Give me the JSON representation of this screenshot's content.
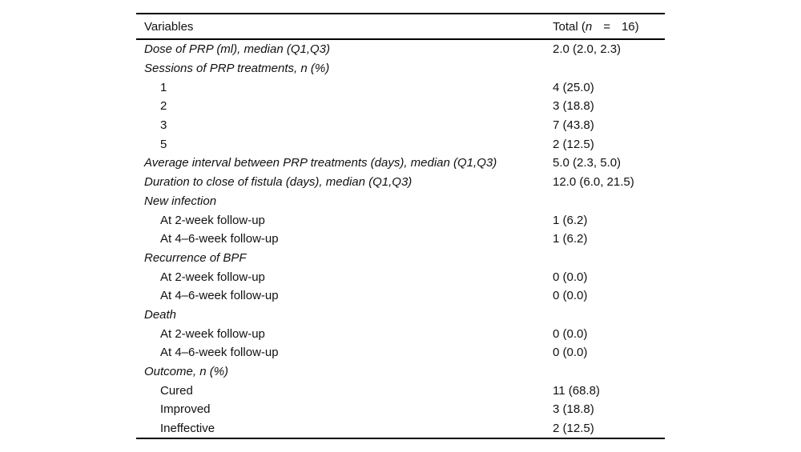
{
  "table": {
    "header": {
      "variables_label": "Variables",
      "total_prefix": "Total (",
      "total_n": "n",
      "total_eq": "=",
      "total_value": "16)"
    },
    "rows": [
      {
        "label": "Dose of PRP (ml), median (Q1,Q3)",
        "value": "2.0 (2.0, 2.3)",
        "italic": true,
        "indent": false
      },
      {
        "label": "Sessions of PRP treatments, n (%)",
        "value": "",
        "italic": true,
        "indent": false
      },
      {
        "label": "1",
        "value": "4 (25.0)",
        "italic": false,
        "indent": true
      },
      {
        "label": "2",
        "value": "3 (18.8)",
        "italic": false,
        "indent": true
      },
      {
        "label": "3",
        "value": "7 (43.8)",
        "italic": false,
        "indent": true
      },
      {
        "label": "5",
        "value": "2 (12.5)",
        "italic": false,
        "indent": true
      },
      {
        "label": "Average interval between PRP treatments (days), median (Q1,Q3)",
        "value": "5.0 (2.3, 5.0)",
        "italic": true,
        "indent": false
      },
      {
        "label": "Duration to close of fistula (days), median (Q1,Q3)",
        "value": "12.0 (6.0, 21.5)",
        "italic": true,
        "indent": false
      },
      {
        "label": "New infection",
        "value": "",
        "italic": true,
        "indent": false
      },
      {
        "label": "At 2-week follow-up",
        "value": "1 (6.2)",
        "italic": false,
        "indent": true
      },
      {
        "label": "At 4–6-week follow-up",
        "value": "1 (6.2)",
        "italic": false,
        "indent": true
      },
      {
        "label": "Recurrence of BPF",
        "value": "",
        "italic": true,
        "indent": false
      },
      {
        "label": "At 2-week follow-up",
        "value": "0 (0.0)",
        "italic": false,
        "indent": true
      },
      {
        "label": "At 4–6-week follow-up",
        "value": "0 (0.0)",
        "italic": false,
        "indent": true
      },
      {
        "label": "Death",
        "value": "",
        "italic": true,
        "indent": false
      },
      {
        "label": "At 2-week follow-up",
        "value": "0 (0.0)",
        "italic": false,
        "indent": true
      },
      {
        "label": "At 4–6-week follow-up",
        "value": "0 (0.0)",
        "italic": false,
        "indent": true
      },
      {
        "label": "Outcome, n (%)",
        "value": "",
        "italic": true,
        "indent": false
      },
      {
        "label": "Cured",
        "value": "11 (68.8)",
        "italic": false,
        "indent": true
      },
      {
        "label": "Improved",
        "value": "3 (18.8)",
        "italic": false,
        "indent": true
      },
      {
        "label": "Ineffective",
        "value": "2 (12.5)",
        "italic": false,
        "indent": true
      }
    ]
  },
  "colors": {
    "text": "#111111",
    "border": "#000000",
    "background": "#ffffff"
  }
}
